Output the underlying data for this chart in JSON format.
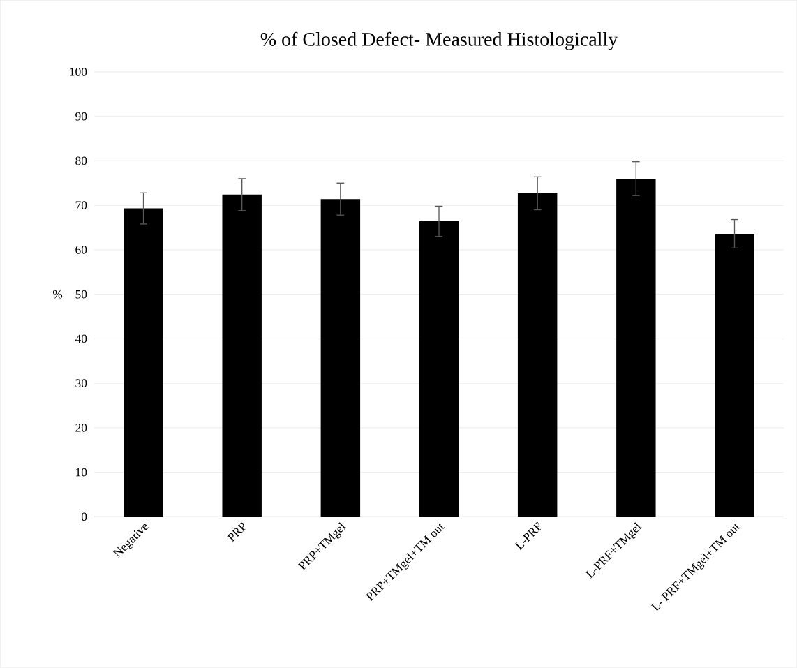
{
  "chart_data": {
    "type": "bar",
    "title": "% of Closed Defect- Measured Histologically",
    "ylabel": "%",
    "categories": [
      "Negative",
      "PRP",
      "PRP+TMgel",
      "PRP+TMgel+TM out",
      "L-PRF",
      "L-PRF+TMgel",
      "L- PRF+TMgel+TM out"
    ],
    "values": [
      69.3,
      72.4,
      71.4,
      66.4,
      72.7,
      76.0,
      63.6
    ],
    "errors": [
      3.5,
      3.6,
      3.6,
      3.4,
      3.7,
      3.8,
      3.2
    ],
    "color": "#000000",
    "ylim": [
      0,
      100
    ],
    "yticks": [
      0,
      10,
      20,
      30,
      40,
      50,
      60,
      70,
      80,
      90,
      100
    ],
    "grid": "y"
  }
}
